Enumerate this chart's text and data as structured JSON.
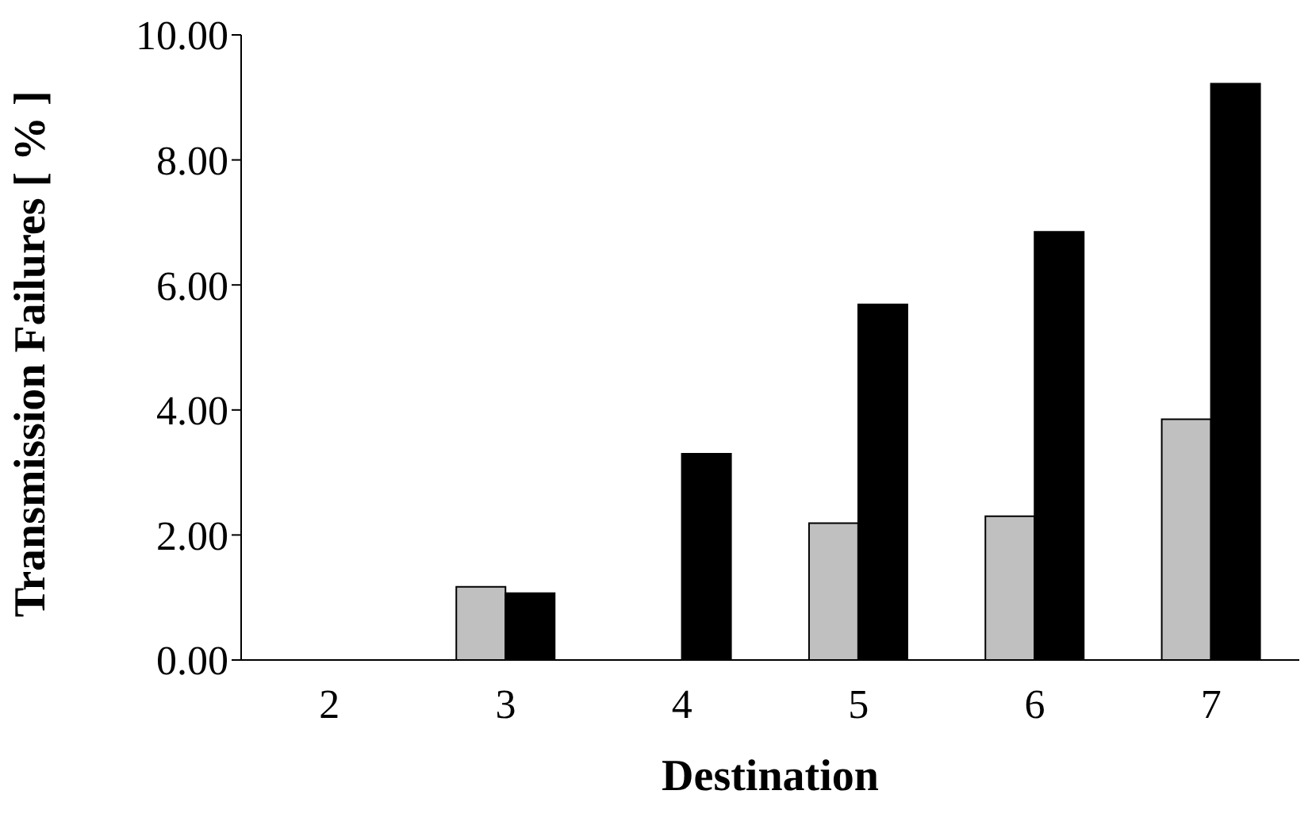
{
  "chart_data": {
    "type": "bar",
    "xlabel": "Destination",
    "ylabel": "Transmission Failures [ % ]",
    "categories": [
      "2",
      "3",
      "4",
      "5",
      "6",
      "7"
    ],
    "series": [
      {
        "color": "#c0c0c0",
        "values": [
          0,
          1.17,
          0,
          2.19,
          2.3,
          3.85
        ]
      },
      {
        "color": "#000000",
        "values": [
          0,
          1.07,
          3.3,
          5.69,
          6.85,
          9.22
        ]
      }
    ],
    "ylim": [
      0,
      10
    ],
    "yticks": [
      {
        "value": 0,
        "label": "0.00"
      },
      {
        "value": 2,
        "label": "2.00"
      },
      {
        "value": 4,
        "label": "4.00"
      },
      {
        "value": 6,
        "label": "6.00"
      },
      {
        "value": 8,
        "label": "8.00"
      },
      {
        "value": 10,
        "label": "10.00"
      }
    ],
    "grid": false,
    "legend": false
  }
}
